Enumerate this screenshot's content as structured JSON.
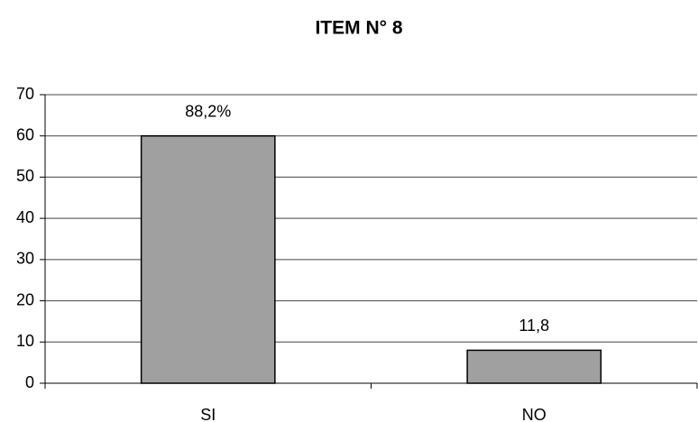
{
  "chart_data": {
    "type": "bar",
    "title": "ITEM N° 8",
    "categories": [
      "SI",
      "NO"
    ],
    "values": [
      60,
      8
    ],
    "color": "#a0a0a0",
    "annotations": [
      "88,2%",
      "11,8"
    ],
    "ylim": [
      0,
      70
    ],
    "yticks": [
      0,
      10,
      20,
      30,
      40,
      50,
      60,
      70
    ],
    "grid": true
  }
}
